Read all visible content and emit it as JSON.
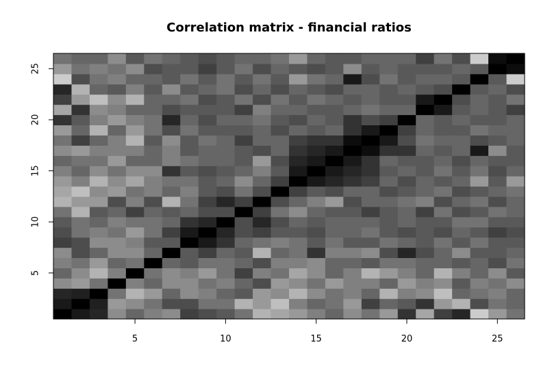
{
  "chart_data": {
    "type": "heatmap",
    "title": "Correlation matrix - financial ratios",
    "xlabel": "",
    "ylabel": "",
    "n": 26,
    "xlim": [
      0.5,
      26.5
    ],
    "ylim": [
      0.5,
      26.5
    ],
    "x_ticks": [
      5,
      10,
      15,
      20,
      25
    ],
    "y_ticks": [
      5,
      10,
      15,
      20,
      25
    ],
    "color_scale": "grayscale, 1 = black, -1 = white",
    "grid": false,
    "values": [
      [
        1.0,
        0.8,
        0.7,
        -0.1,
        0.2,
        0.0,
        -0.1,
        0.5,
        0.4,
        0.3,
        0.1,
        -0.4,
        -0.3,
        -0.2,
        0.0,
        0.2,
        -0.1,
        0.1,
        -0.2,
        0.6,
        -0.3,
        0.5,
        0.7,
        -0.6,
        -0.2,
        0.1
      ],
      [
        0.8,
        1.0,
        0.75,
        -0.2,
        -0.1,
        0.1,
        0.4,
        0.4,
        0.1,
        0.1,
        -0.4,
        -0.2,
        -0.5,
        0.0,
        0.2,
        0.1,
        -0.2,
        0.5,
        0.2,
        0.3,
        0.6,
        -0.2,
        -0.4,
        0.4,
        0.1,
        0.2
      ],
      [
        0.7,
        0.75,
        1.0,
        0.1,
        -0.4,
        -0.2,
        0.2,
        -0.1,
        0.0,
        0.2,
        0.3,
        -0.2,
        -0.1,
        -0.4,
        -0.1,
        0.1,
        0.0,
        0.2,
        -0.4,
        0.0,
        -0.1,
        -0.5,
        0.2,
        0.1,
        0.0,
        0.2
      ],
      [
        -0.1,
        -0.2,
        0.1,
        1.0,
        0.0,
        0.2,
        -0.1,
        -0.1,
        0.1,
        0.0,
        0.2,
        0.4,
        -0.2,
        -0.1,
        0.1,
        -0.2,
        0.0,
        0.0,
        0.2,
        -0.2,
        0.0,
        -0.1,
        0.3,
        0.0,
        0.1,
        -0.1
      ],
      [
        0.2,
        -0.1,
        -0.4,
        0.0,
        1.0,
        0.1,
        -0.1,
        0.0,
        -0.2,
        0.1,
        0.5,
        0.0,
        0.1,
        -0.3,
        -0.1,
        0.2,
        0.0,
        -0.4,
        -0.2,
        0.0,
        0.2,
        -0.4,
        0.0,
        0.2,
        -0.1,
        0.3
      ],
      [
        0.0,
        0.1,
        -0.2,
        0.2,
        0.1,
        1.0,
        0.2,
        0.3,
        0.1,
        0.1,
        0.2,
        0.4,
        0.0,
        0.0,
        -0.1,
        0.2,
        0.2,
        0.3,
        0.1,
        0.1,
        0.2,
        0.2,
        0.3,
        0.2,
        0.4,
        0.1
      ],
      [
        -0.1,
        0.4,
        0.2,
        -0.1,
        -0.1,
        0.2,
        1.0,
        0.3,
        0.5,
        0.2,
        0.3,
        -0.4,
        0.2,
        0.1,
        0.6,
        0.0,
        0.0,
        -0.1,
        0.4,
        0.7,
        0.4,
        0.2,
        -0.1,
        0.3,
        0.3,
        0.2
      ],
      [
        0.5,
        0.4,
        -0.1,
        -0.1,
        0.0,
        0.3,
        0.3,
        1.0,
        0.8,
        0.6,
        0.2,
        0.1,
        0.0,
        0.1,
        0.3,
        0.1,
        0.3,
        0.3,
        0.1,
        0.2,
        0.3,
        0.1,
        0.3,
        0.1,
        0.3,
        0.3
      ],
      [
        0.4,
        0.1,
        0.0,
        0.1,
        -0.2,
        0.1,
        0.5,
        0.8,
        1.0,
        0.7,
        0.4,
        0.5,
        0.3,
        0.3,
        0.4,
        0.2,
        0.2,
        0.1,
        0.3,
        0.4,
        0.3,
        0.4,
        0.2,
        0.3,
        0.5,
        0.4
      ],
      [
        0.3,
        0.1,
        0.2,
        0.0,
        0.1,
        0.1,
        0.2,
        0.6,
        0.7,
        1.0,
        0.4,
        0.7,
        0.4,
        0.2,
        0.3,
        0.2,
        0.2,
        0.2,
        0.3,
        0.2,
        0.3,
        0.3,
        0.1,
        0.1,
        0.3,
        0.3
      ],
      [
        0.1,
        -0.4,
        0.3,
        0.2,
        0.5,
        0.2,
        0.3,
        0.2,
        0.4,
        0.4,
        1.0,
        0.5,
        0.1,
        -0.1,
        0.2,
        0.3,
        0.3,
        0.5,
        0.3,
        0.2,
        0.5,
        0.1,
        0.4,
        0.3,
        0.1,
        0.2
      ],
      [
        -0.4,
        -0.2,
        -0.2,
        0.4,
        0.0,
        0.4,
        -0.4,
        0.1,
        0.5,
        0.7,
        0.5,
        1.0,
        0.4,
        0.2,
        0.0,
        -0.2,
        0.4,
        0.2,
        0.2,
        0.1,
        0.0,
        0.4,
        0.2,
        0.1,
        0.4,
        0.2
      ],
      [
        -0.3,
        -0.5,
        -0.1,
        -0.2,
        0.1,
        0.0,
        0.2,
        0.0,
        0.3,
        0.4,
        0.1,
        0.4,
        1.0,
        0.5,
        0.3,
        0.4,
        0.2,
        0.2,
        0.4,
        0.3,
        0.2,
        0.1,
        0.4,
        0.3,
        0.2,
        0.1
      ],
      [
        -0.2,
        0.0,
        -0.4,
        -0.1,
        -0.3,
        0.0,
        0.1,
        0.1,
        0.3,
        0.2,
        -0.1,
        0.2,
        0.5,
        1.0,
        0.8,
        0.7,
        0.6,
        0.5,
        0.2,
        0.4,
        0.2,
        0.3,
        0.2,
        -0.2,
        0.3,
        -0.2
      ],
      [
        0.0,
        0.2,
        -0.1,
        0.1,
        -0.1,
        -0.1,
        0.6,
        0.3,
        0.4,
        0.3,
        0.2,
        0.0,
        0.3,
        0.8,
        1.0,
        0.8,
        0.7,
        0.6,
        0.3,
        0.2,
        0.3,
        0.1,
        0.3,
        0.1,
        0.4,
        0.2
      ],
      [
        0.2,
        0.1,
        0.1,
        -0.2,
        0.2,
        0.2,
        0.0,
        0.1,
        0.2,
        0.2,
        0.3,
        -0.2,
        0.4,
        0.7,
        0.8,
        1.0,
        0.8,
        0.6,
        0.2,
        0.3,
        0.3,
        0.2,
        0.4,
        0.2,
        0.3,
        0.3
      ],
      [
        -0.1,
        -0.2,
        0.0,
        0.0,
        0.0,
        0.2,
        0.0,
        0.3,
        0.2,
        0.2,
        0.3,
        0.4,
        0.2,
        0.6,
        0.7,
        0.8,
        1.0,
        0.9,
        0.6,
        0.6,
        0.2,
        0.3,
        0.2,
        0.8,
        -0.1,
        0.3
      ],
      [
        0.1,
        0.5,
        0.2,
        0.0,
        -0.4,
        0.3,
        -0.1,
        0.3,
        0.1,
        0.2,
        0.5,
        0.2,
        0.2,
        0.5,
        0.6,
        0.6,
        0.9,
        1.0,
        0.8,
        0.4,
        0.1,
        0.2,
        0.2,
        0.4,
        0.3,
        0.2
      ],
      [
        -0.2,
        0.2,
        -0.4,
        0.2,
        -0.2,
        0.1,
        0.4,
        0.1,
        0.3,
        0.3,
        0.3,
        0.2,
        0.4,
        0.2,
        0.3,
        0.2,
        0.6,
        0.8,
        1.0,
        0.5,
        0.2,
        0.3,
        0.3,
        0.1,
        0.2,
        0.2
      ],
      [
        0.6,
        0.3,
        0.0,
        -0.2,
        0.0,
        0.1,
        0.7,
        0.2,
        0.4,
        0.2,
        0.2,
        0.1,
        0.3,
        0.4,
        0.2,
        0.3,
        0.6,
        0.4,
        0.5,
        1.0,
        0.2,
        0.3,
        0.2,
        0.3,
        0.3,
        0.2
      ],
      [
        -0.3,
        0.6,
        -0.1,
        0.0,
        0.2,
        0.2,
        0.4,
        0.3,
        0.3,
        0.3,
        0.5,
        0.0,
        0.2,
        0.2,
        0.3,
        0.3,
        0.2,
        0.1,
        0.2,
        0.2,
        1.0,
        0.8,
        0.3,
        0.2,
        0.3,
        0.5
      ],
      [
        0.5,
        -0.2,
        -0.5,
        -0.1,
        -0.4,
        0.2,
        0.2,
        0.1,
        0.4,
        0.3,
        0.1,
        0.4,
        0.1,
        0.3,
        0.1,
        0.2,
        0.3,
        0.2,
        0.3,
        0.3,
        0.8,
        1.0,
        0.4,
        0.2,
        0.3,
        0.1
      ],
      [
        0.7,
        -0.4,
        0.2,
        0.3,
        0.0,
        0.3,
        -0.1,
        0.3,
        0.2,
        0.1,
        0.4,
        0.2,
        0.4,
        0.2,
        0.3,
        0.4,
        0.2,
        0.2,
        0.3,
        0.2,
        0.3,
        0.4,
        1.0,
        0.3,
        0.2,
        0.4
      ],
      [
        -0.6,
        0.4,
        0.1,
        0.0,
        0.2,
        0.2,
        0.3,
        0.1,
        0.3,
        0.1,
        0.3,
        0.1,
        0.3,
        -0.2,
        0.1,
        0.2,
        0.8,
        0.4,
        0.1,
        0.3,
        0.2,
        0.2,
        0.3,
        1.0,
        0.3,
        -0.6
      ],
      [
        -0.2,
        0.1,
        0.0,
        0.1,
        -0.1,
        0.4,
        0.3,
        0.3,
        0.5,
        0.3,
        0.1,
        0.4,
        0.2,
        0.3,
        0.4,
        0.3,
        -0.1,
        0.3,
        0.2,
        0.3,
        0.3,
        0.3,
        0.2,
        0.3,
        1.0,
        0.9
      ],
      [
        0.1,
        0.2,
        0.2,
        -0.1,
        0.3,
        0.1,
        0.2,
        0.3,
        0.4,
        0.3,
        0.2,
        0.2,
        0.1,
        -0.2,
        0.2,
        0.3,
        0.3,
        0.2,
        0.2,
        0.2,
        0.5,
        0.1,
        0.4,
        -0.6,
        0.9,
        1.0
      ]
    ]
  }
}
